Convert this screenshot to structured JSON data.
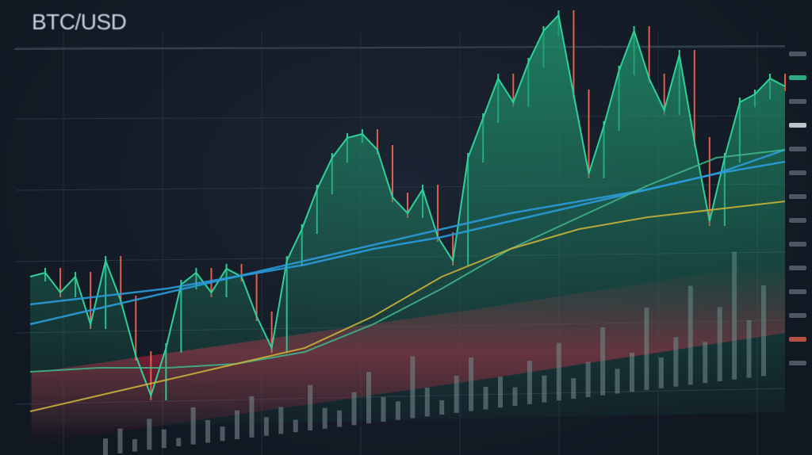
{
  "header": {
    "title": "BTC/USD"
  },
  "colors": {
    "up": "#2fd19a",
    "down": "#e0604f",
    "area": "#1f8f6a",
    "ma_blue": "#2a9ad8",
    "ma_green": "#3fb38a",
    "ma_yellow": "#c9b13a",
    "ma_red": "#b54a63",
    "volume": "#8d96a0",
    "band": "#a0203a"
  },
  "chart_data": {
    "type": "line",
    "title": "BTC/USD",
    "grid": true,
    "series": [
      {
        "role": "price",
        "values": [
          45,
          46,
          41,
          45,
          33,
          49,
          39,
          25,
          15,
          27,
          43,
          46,
          41,
          47,
          45,
          35,
          27,
          49,
          57,
          67,
          75,
          80,
          81,
          77,
          65,
          61,
          67,
          55,
          49,
          75,
          85,
          95,
          89,
          99,
          107,
          111,
          91,
          71,
          83,
          97,
          107,
          95,
          87,
          101,
          79,
          59,
          75,
          89,
          91,
          95,
          93
        ]
      },
      {
        "role": "moving-average",
        "color": "blue",
        "values": [
          33,
          37,
          41,
          45,
          49,
          53,
          57,
          61,
          64,
          67,
          71,
          74
        ]
      },
      {
        "role": "moving-average",
        "color": "blue",
        "values": [
          38,
          40,
          42,
          45,
          48,
          52,
          55,
          59,
          63,
          67,
          71,
          77
        ]
      },
      {
        "role": "moving-average",
        "color": "green",
        "values": [
          21,
          22,
          22,
          23,
          26,
          33,
          42,
          52,
          60,
          68,
          75,
          77
        ]
      },
      {
        "role": "moving-average",
        "color": "yellow",
        "values": [
          11,
          15,
          19,
          23,
          27,
          35,
          45,
          52,
          57,
          60,
          62,
          64
        ]
      }
    ],
    "volume": [
      8,
      12,
      6,
      15,
      9,
      4,
      18,
      11,
      7,
      14,
      20,
      9,
      13,
      6,
      22,
      10,
      8,
      16,
      25,
      12,
      9,
      30,
      14,
      7,
      18,
      26,
      11,
      15,
      9,
      21,
      13,
      28,
      10,
      17,
      33,
      12,
      19,
      40,
      15,
      24,
      48,
      20,
      36,
      62,
      28,
      44
    ]
  }
}
